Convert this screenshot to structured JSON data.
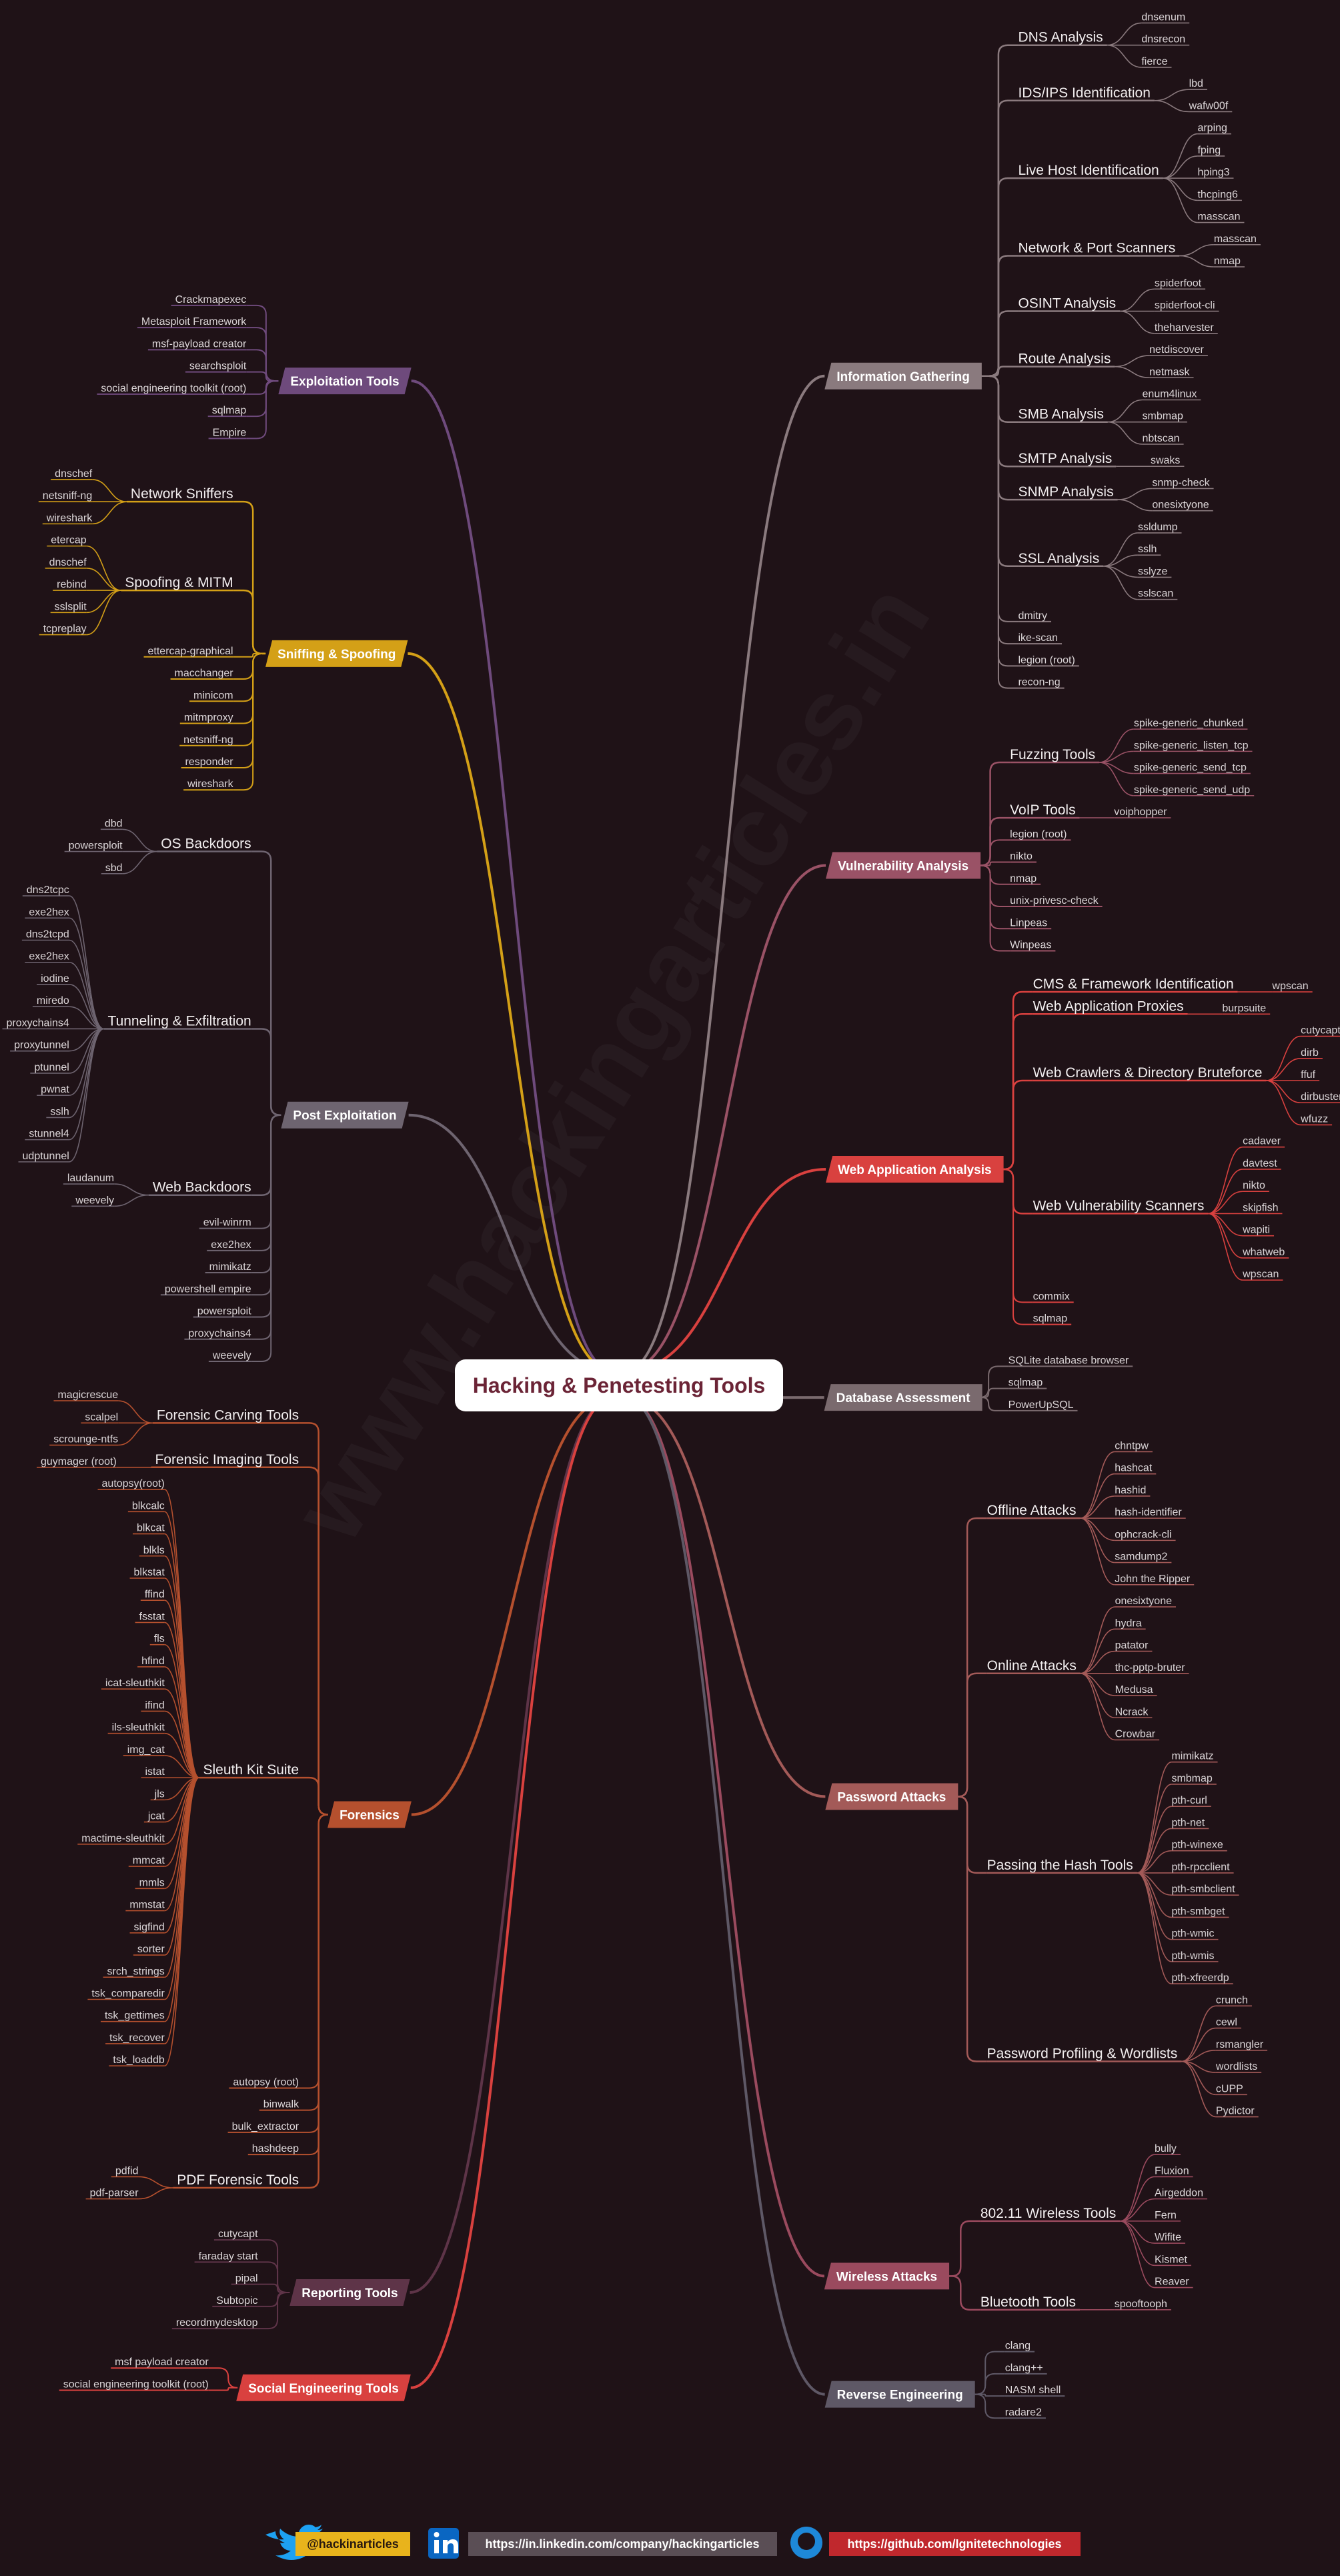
{
  "title": "Hacking & Penetesting Tools",
  "watermark": "www.hackingarticles.in",
  "branches": [
    {
      "label": "Information Gathering",
      "side": "right",
      "color": "#8a7a7e",
      "children": [
        {
          "label": "DNS Analysis",
          "items": [
            "dnsenum",
            "dnsrecon",
            "fierce"
          ]
        },
        {
          "label": "IDS/IPS Identification",
          "items": [
            "lbd",
            "wafw00f"
          ]
        },
        {
          "label": "Live Host Identification",
          "items": [
            "arping",
            "fping",
            "hping3",
            "thcping6",
            "masscan"
          ]
        },
        {
          "label": "Network & Port Scanners",
          "items": [
            "masscan",
            "nmap"
          ]
        },
        {
          "label": "OSINT Analysis",
          "items": [
            "spiderfoot",
            "spiderfoot-cli",
            "theharvester"
          ]
        },
        {
          "label": "Route Analysis",
          "items": [
            "netdiscover",
            "netmask"
          ]
        },
        {
          "label": "SMB Analysis",
          "items": [
            "enum4linux",
            "smbmap",
            "nbtscan"
          ]
        },
        {
          "label": "SMTP Analysis",
          "items": [
            "swaks"
          ]
        },
        {
          "label": "SNMP Analysis",
          "items": [
            "snmp-check",
            "onesixtyone"
          ]
        },
        {
          "label": "SSL Analysis",
          "items": [
            "ssldump",
            "sslh",
            "sslyze",
            "sslscan"
          ]
        },
        "dmitry",
        "ike-scan",
        "legion (root)",
        "recon-ng"
      ]
    },
    {
      "label": "Vulnerability Analysis",
      "side": "right",
      "color": "#9a5266",
      "children": [
        {
          "label": "Fuzzing Tools",
          "items": [
            "spike-generic_chunked",
            "spike-generic_listen_tcp",
            "spike-generic_send_tcp",
            "spike-generic_send_udp"
          ]
        },
        {
          "label": "VoIP Tools",
          "items": [
            "voiphopper"
          ]
        },
        "legion (root)",
        "nikto",
        "nmap",
        "unix-privesc-check",
        "Linpeas",
        "Winpeas"
      ]
    },
    {
      "label": "Web Application Analysis",
      "side": "right",
      "color": "#d9413f",
      "children": [
        {
          "label": "CMS & Framework Identification",
          "items": [
            "wpscan"
          ]
        },
        {
          "label": "Web Application Proxies",
          "items": [
            "burpsuite"
          ]
        },
        {
          "label": "Web Crawlers & Directory Bruteforce",
          "items": [
            "cutycapt",
            "dirb",
            "ffuf",
            "dirbuster",
            "wfuzz"
          ]
        },
        {
          "label": "Web Vulnerability Scanners",
          "items": [
            "cadaver",
            "davtest",
            "nikto",
            "skipfish",
            "wapiti",
            "whatweb",
            "wpscan"
          ]
        },
        "commix",
        "sqlmap"
      ]
    },
    {
      "label": "Database Assessment",
      "side": "right",
      "color": "#7a6a6e",
      "children": [
        "SQLite database browser",
        "sqlmap",
        "PowerUpSQL"
      ]
    },
    {
      "label": "Password Attacks",
      "side": "right",
      "color": "#a35a58",
      "children": [
        {
          "label": "Offline Attacks",
          "items": [
            "chntpw",
            "hashcat",
            "hashid",
            "hash-identifier",
            "ophcrack-cli",
            "samdump2",
            "John the Ripper"
          ]
        },
        {
          "label": "Online Attacks",
          "items": [
            "onesixtyone",
            "hydra",
            "patator",
            "thc-pptp-bruter",
            "Medusa",
            "Ncrack",
            "Crowbar"
          ]
        },
        {
          "label": "Passing the Hash Tools",
          "items": [
            "mimikatz",
            "smbmap",
            "pth-curl",
            "pth-net",
            "pth-winexe",
            "pth-rpcclient",
            "pth-smbclient",
            "pth-smbget",
            "pth-wmic",
            "pth-wmis",
            "pth-xfreerdp"
          ]
        },
        {
          "label": "Password Profiling & Wordlists",
          "items": [
            "crunch",
            "cewl",
            "rsmangler",
            "wordlists",
            "cUPP",
            "Pydictor"
          ]
        }
      ]
    },
    {
      "label": "Wireless Attacks",
      "side": "right",
      "color": "#9a4a5e",
      "children": [
        {
          "label": "802.11 Wireless Tools",
          "items": [
            "bully",
            "Fluxion",
            "Airgeddon",
            "Fern",
            "Wifite",
            "Kismet",
            "Reaver"
          ]
        },
        {
          "label": "Bluetooth Tools",
          "items": [
            "spooftooph"
          ]
        }
      ]
    },
    {
      "label": "Reverse Engineering",
      "side": "right",
      "color": "#5e5866",
      "children": [
        "clang",
        "clang++",
        "NASM shell",
        "radare2"
      ]
    },
    {
      "label": "Exploitation Tools",
      "side": "left",
      "color": "#6e4a7c",
      "children": [
        "Crackmapexec",
        "Metasploit Framework",
        "msf-payload creator",
        "searchsploit",
        "social engineering toolkit (root)",
        "sqlmap",
        "Empire"
      ]
    },
    {
      "label": "Sniffing & Spoofing",
      "side": "left",
      "color": "#d4a017",
      "children": [
        {
          "label": "Network Sniffers",
          "items": [
            "dnschef",
            "netsniff-ng",
            "wireshark"
          ]
        },
        {
          "label": "Spoofing & MITM",
          "items": [
            "etercap",
            "dnschef",
            "rebind",
            "sslsplit",
            "tcpreplay"
          ]
        },
        "ettercap-graphical",
        "macchanger",
        "minicom",
        "mitmproxy",
        "netsniff-ng",
        "responder",
        "wireshark"
      ]
    },
    {
      "label": "Post Exploitation",
      "side": "left",
      "color": "#6e6470",
      "children": [
        {
          "label": "OS Backdoors",
          "items": [
            "dbd",
            "powersploit",
            "sbd"
          ]
        },
        {
          "label": "Tunneling & Exfiltration",
          "items": [
            "dns2tcpc",
            "exe2hex",
            "dns2tcpd",
            "exe2hex",
            "iodine",
            "miredo",
            "proxychains4",
            "proxytunnel",
            "ptunnel",
            "pwnat",
            "sslh",
            "stunnel4",
            "udptunnel"
          ]
        },
        {
          "label": "Web Backdoors",
          "items": [
            "laudanum",
            "weevely"
          ]
        },
        "evil-winrm",
        "exe2hex",
        "mimikatz",
        "powershell empire",
        "powersploit",
        "proxychains4",
        "weevely"
      ]
    },
    {
      "label": "Forensics",
      "side": "left",
      "color": "#b5502e",
      "children": [
        {
          "label": "Forensic Carving Tools",
          "items": [
            "magicrescue",
            "scalpel",
            "scrounge-ntfs"
          ]
        },
        {
          "label": "Forensic Imaging Tools",
          "items": [
            "guymager (root)"
          ]
        },
        {
          "label": "Sleuth Kit Suite",
          "items": [
            "autopsy(root)",
            "blkcalc",
            "blkcat",
            "blkls",
            "blkstat",
            "ffind",
            "fsstat",
            "fls",
            "hfind",
            "icat-sleuthkit",
            "ifind",
            "ils-sleuthkit",
            "img_cat",
            "istat",
            "jls",
            "jcat",
            "mactime-sleuthkit",
            "mmcat",
            "mmls",
            "mmstat",
            "sigfind",
            "sorter",
            "srch_strings",
            "tsk_comparedir",
            "tsk_gettimes",
            "tsk_recover",
            "tsk_loaddb"
          ]
        },
        "autopsy (root)",
        "binwalk",
        "bulk_extractor",
        "hashdeep",
        {
          "label": "PDF Forensic Tools",
          "items": [
            "pdfid",
            "pdf-parser"
          ]
        }
      ]
    },
    {
      "label": "Reporting Tools",
      "side": "left",
      "color": "#5e3448",
      "children": [
        "cutycapt",
        "faraday start",
        "pipal",
        "Subtopic",
        "recordmydesktop"
      ]
    },
    {
      "label": "Social Engineering Tools",
      "side": "left",
      "color": "#d9413f",
      "children": [
        "msf payload creator",
        "social engineering toolkit (root)"
      ]
    }
  ],
  "footer": {
    "twitter": "@hackinarticles",
    "linkedin": "https://in.linkedin.com/company/hackingarticles",
    "github": "https://github.com/Ignitetechnologies"
  }
}
